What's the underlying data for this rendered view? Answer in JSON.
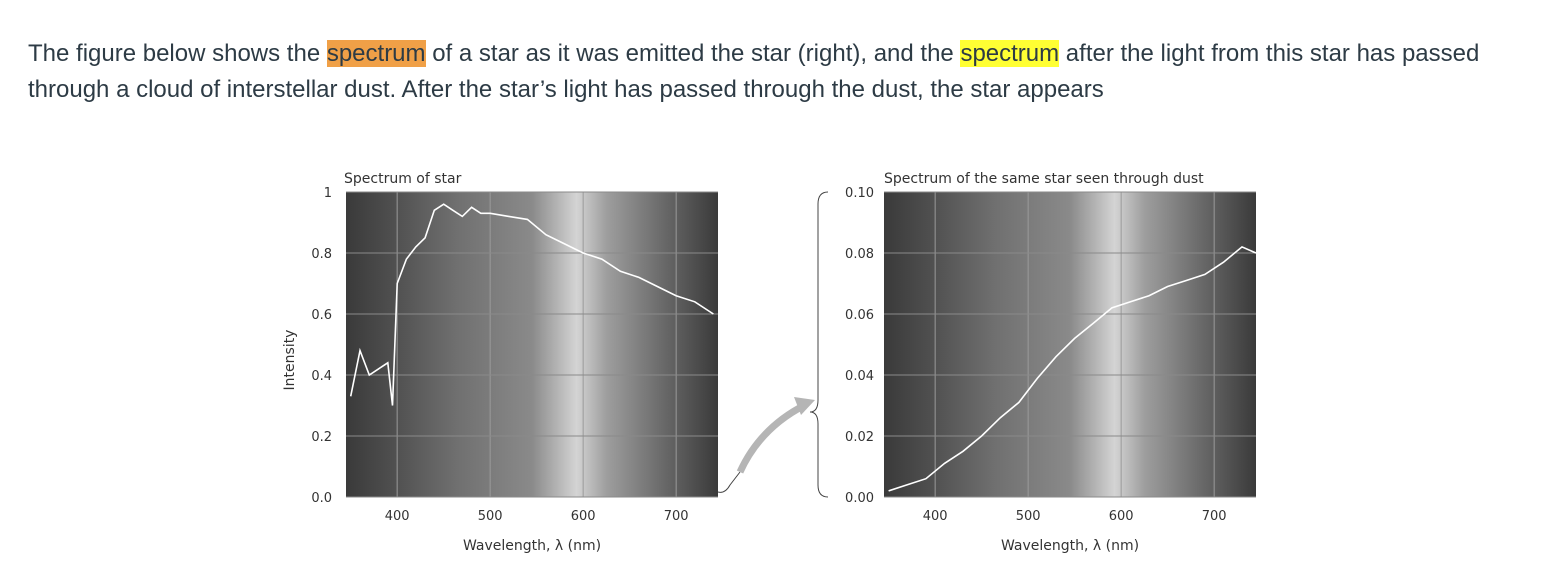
{
  "question": {
    "part1": "The figure below shows the ",
    "highlight1": "spectrum",
    "part2": " of a star as it was emitted the star (right), and the ",
    "highlight2": "spectrum",
    "part3": " after the light from this star has passed through a cloud of interstellar dust. After the star’s light has passed through the dust, the star appears"
  },
  "colors": {
    "highlight1": "#f0a047",
    "highlight2": "#ffff33",
    "text": "#2d3b45",
    "trace": "#ffffff",
    "arrow": "#b5b5b5"
  },
  "chart_data": [
    {
      "type": "line",
      "title": "Spectrum of star",
      "xlabel": "Wavelength, λ (nm)",
      "ylabel": "Intensity",
      "xlim": [
        345,
        745
      ],
      "ylim": [
        0,
        1.0
      ],
      "xticks": [
        "400",
        "500",
        "600",
        "700"
      ],
      "yticks": [
        "0.0",
        "0.2",
        "0.4",
        "0.6",
        "0.8",
        "1"
      ],
      "x": [
        350,
        360,
        370,
        380,
        390,
        395,
        400,
        410,
        420,
        430,
        440,
        450,
        460,
        470,
        480,
        490,
        500,
        520,
        540,
        560,
        580,
        600,
        620,
        640,
        660,
        680,
        700,
        720,
        740
      ],
      "y": [
        0.33,
        0.48,
        0.4,
        0.42,
        0.44,
        0.3,
        0.7,
        0.78,
        0.82,
        0.85,
        0.94,
        0.96,
        0.94,
        0.92,
        0.95,
        0.93,
        0.93,
        0.92,
        0.91,
        0.86,
        0.83,
        0.8,
        0.78,
        0.74,
        0.72,
        0.69,
        0.66,
        0.64,
        0.6
      ]
    },
    {
      "type": "line",
      "title": "Spectrum of the same star seen through dust",
      "xlabel": "Wavelength, λ (nm)",
      "ylabel": "",
      "xlim": [
        345,
        745
      ],
      "ylim": [
        0,
        0.1
      ],
      "xticks": [
        "400",
        "500",
        "600",
        "700"
      ],
      "yticks": [
        "0.00",
        "0.02",
        "0.04",
        "0.06",
        "0.08",
        "0.10"
      ],
      "x": [
        350,
        370,
        390,
        410,
        430,
        450,
        470,
        490,
        510,
        530,
        550,
        570,
        590,
        610,
        630,
        650,
        670,
        690,
        710,
        730,
        745
      ],
      "y": [
        0.002,
        0.004,
        0.006,
        0.011,
        0.015,
        0.02,
        0.026,
        0.031,
        0.039,
        0.046,
        0.052,
        0.057,
        0.062,
        0.064,
        0.066,
        0.069,
        0.071,
        0.073,
        0.077,
        0.082,
        0.08
      ]
    }
  ]
}
